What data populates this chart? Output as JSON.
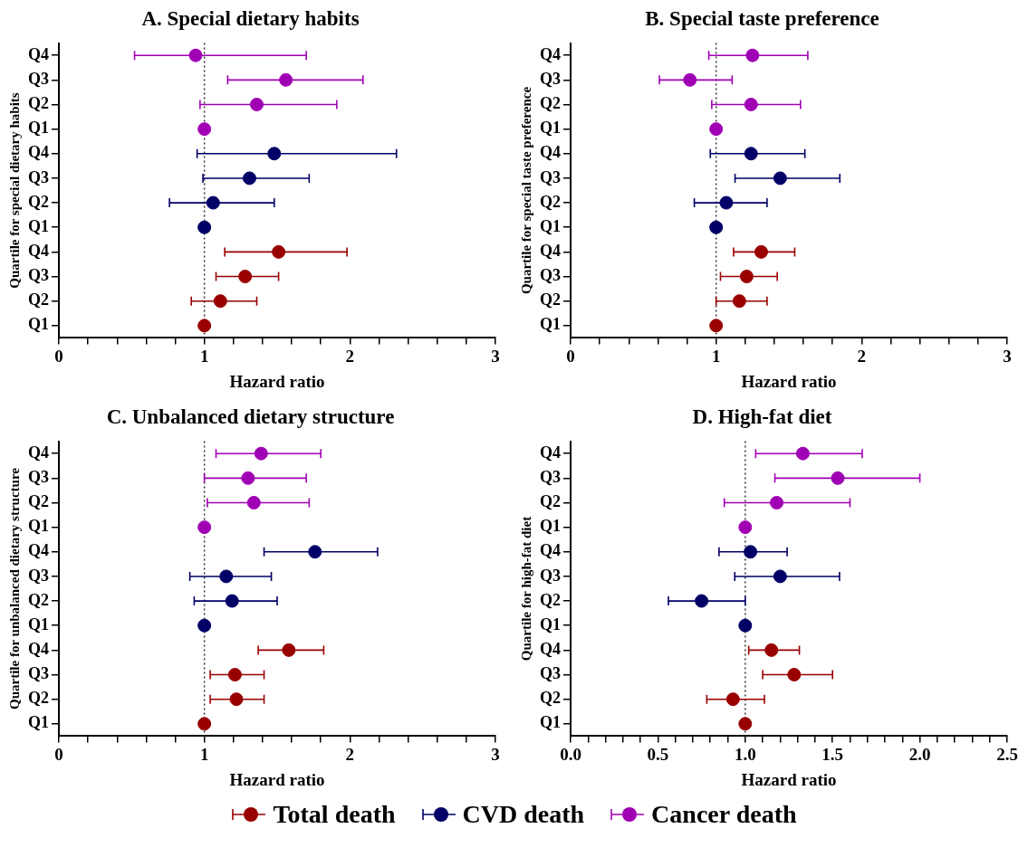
{
  "chart_data": [
    {
      "type": "scatter",
      "orientation": "horizontal",
      "title": "A. Special dietary habits",
      "xlabel": "Hazard ratio",
      "ylabel": "Quartile for special dietary habits",
      "categories": [
        "Q4",
        "Q3",
        "Q2",
        "Q1",
        "Q4",
        "Q3",
        "Q2",
        "Q1",
        "Q4",
        "Q3",
        "Q2",
        "Q1"
      ],
      "xlim": [
        0,
        3
      ],
      "xticks": [
        0,
        {
          "value": 0.2,
          "label": null
        },
        {
          "value": 0.4,
          "label": null
        },
        {
          "value": 0.6,
          "label": null
        },
        {
          "value": 0.8,
          "label": null
        },
        1,
        {
          "value": 1.2,
          "label": null
        },
        {
          "value": 1.4,
          "label": null
        },
        {
          "value": 1.6,
          "label": null
        },
        {
          "value": 1.8,
          "label": null
        },
        2,
        {
          "value": 2.2,
          "label": null
        },
        {
          "value": 2.4,
          "label": null
        },
        {
          "value": 2.6,
          "label": null
        },
        {
          "value": 2.8,
          "label": null
        },
        3
      ],
      "grid": false,
      "marker": "circle",
      "ref_lines": [
        {
          "axis": "x",
          "value": 1,
          "line_style": "dotted",
          "color": "#333333"
        }
      ],
      "series": [
        {
          "color": "#990000",
          "values": [
            null,
            null,
            null,
            null,
            null,
            null,
            null,
            null,
            1.51,
            1.28,
            1.11,
            1
          ],
          "errors": [
            null,
            null,
            null,
            null,
            null,
            null,
            null,
            null,
            [
              1.14,
              1.98
            ],
            [
              1.08,
              1.51
            ],
            [
              0.91,
              1.36
            ],
            null
          ]
        },
        {
          "color": "#000066",
          "values": [
            null,
            null,
            null,
            null,
            1.48,
            1.31,
            1.06,
            1,
            null,
            null,
            null,
            null
          ],
          "errors": [
            null,
            null,
            null,
            null,
            [
              0.95,
              2.32
            ],
            [
              0.99,
              1.72
            ],
            [
              0.76,
              1.48
            ],
            null,
            null,
            null,
            null,
            null
          ]
        },
        {
          "color": "#a000b4",
          "values": [
            0.94,
            1.56,
            1.36,
            1,
            null,
            null,
            null,
            null,
            null,
            null,
            null,
            null
          ],
          "errors": [
            [
              0.52,
              1.7
            ],
            [
              1.16,
              2.09
            ],
            [
              0.97,
              1.91
            ],
            null,
            null,
            null,
            null,
            null,
            null,
            null,
            null,
            null
          ]
        }
      ]
    },
    {
      "type": "scatter",
      "orientation": "horizontal",
      "title": "B. Special taste preference",
      "xlabel": "Hazard ratio",
      "ylabel": "Quartile for special taste preference",
      "categories": [
        "Q4",
        "Q3",
        "Q2",
        "Q1",
        "Q4",
        "Q3",
        "Q2",
        "Q1",
        "Q4",
        "Q3",
        "Q2",
        "Q1"
      ],
      "xlim": [
        0,
        3
      ],
      "xticks": [
        0,
        {
          "value": 0.2,
          "label": null
        },
        {
          "value": 0.4,
          "label": null
        },
        {
          "value": 0.6,
          "label": null
        },
        {
          "value": 0.8,
          "label": null
        },
        1,
        {
          "value": 1.2,
          "label": null
        },
        {
          "value": 1.4,
          "label": null
        },
        {
          "value": 1.6,
          "label": null
        },
        {
          "value": 1.8,
          "label": null
        },
        2,
        {
          "value": 2.2,
          "label": null
        },
        {
          "value": 2.4,
          "label": null
        },
        {
          "value": 2.6,
          "label": null
        },
        {
          "value": 2.8,
          "label": null
        },
        3
      ],
      "grid": false,
      "marker": "circle",
      "ref_lines": [
        {
          "axis": "x",
          "value": 1,
          "line_style": "dotted",
          "color": "#333333"
        }
      ],
      "series": [
        {
          "color": "#990000",
          "values": [
            null,
            null,
            null,
            null,
            null,
            null,
            null,
            null,
            1.31,
            1.21,
            1.16,
            1
          ],
          "errors": [
            null,
            null,
            null,
            null,
            null,
            null,
            null,
            null,
            [
              1.12,
              1.54
            ],
            [
              1.03,
              1.42
            ],
            [
              1.0,
              1.35
            ],
            null
          ]
        },
        {
          "color": "#000066",
          "values": [
            null,
            null,
            null,
            null,
            1.24,
            1.44,
            1.07,
            1,
            null,
            null,
            null,
            null
          ],
          "errors": [
            null,
            null,
            null,
            null,
            [
              0.96,
              1.61
            ],
            [
              1.13,
              1.85
            ],
            [
              0.85,
              1.35
            ],
            null,
            null,
            null,
            null,
            null
          ]
        },
        {
          "color": "#a000b4",
          "values": [
            1.25,
            0.82,
            1.24,
            1,
            null,
            null,
            null,
            null,
            null,
            null,
            null,
            null
          ],
          "errors": [
            [
              0.95,
              1.63
            ],
            [
              0.61,
              1.11
            ],
            [
              0.97,
              1.58
            ],
            null,
            null,
            null,
            null,
            null,
            null,
            null,
            null,
            null
          ]
        }
      ]
    },
    {
      "type": "scatter",
      "orientation": "horizontal",
      "title": "C. Unbalanced dietary structure",
      "xlabel": "Hazard ratio",
      "ylabel": "Quartile for unbalanced dietary structure",
      "categories": [
        "Q4",
        "Q3",
        "Q2",
        "Q1",
        "Q4",
        "Q3",
        "Q2",
        "Q1",
        "Q4",
        "Q3",
        "Q2",
        "Q1"
      ],
      "xlim": [
        0,
        3
      ],
      "xticks": [
        0,
        {
          "value": 0.2,
          "label": null
        },
        {
          "value": 0.4,
          "label": null
        },
        {
          "value": 0.6,
          "label": null
        },
        {
          "value": 0.8,
          "label": null
        },
        1,
        {
          "value": 1.2,
          "label": null
        },
        {
          "value": 1.4,
          "label": null
        },
        {
          "value": 1.6,
          "label": null
        },
        {
          "value": 1.8,
          "label": null
        },
        2,
        {
          "value": 2.2,
          "label": null
        },
        {
          "value": 2.4,
          "label": null
        },
        {
          "value": 2.6,
          "label": null
        },
        {
          "value": 2.8,
          "label": null
        },
        3
      ],
      "grid": false,
      "marker": "circle",
      "ref_lines": [
        {
          "axis": "x",
          "value": 1,
          "line_style": "dotted",
          "color": "#333333"
        }
      ],
      "series": [
        {
          "color": "#990000",
          "values": [
            null,
            null,
            null,
            null,
            null,
            null,
            null,
            null,
            1.58,
            1.21,
            1.22,
            1
          ],
          "errors": [
            null,
            null,
            null,
            null,
            null,
            null,
            null,
            null,
            [
              1.37,
              1.82
            ],
            [
              1.04,
              1.41
            ],
            [
              1.04,
              1.41
            ],
            null
          ]
        },
        {
          "color": "#000066",
          "values": [
            null,
            null,
            null,
            null,
            1.76,
            1.15,
            1.19,
            1,
            null,
            null,
            null,
            null
          ],
          "errors": [
            null,
            null,
            null,
            null,
            [
              1.41,
              2.19
            ],
            [
              0.9,
              1.46
            ],
            [
              0.93,
              1.5
            ],
            null,
            null,
            null,
            null,
            null
          ]
        },
        {
          "color": "#a000b4",
          "values": [
            1.39,
            1.3,
            1.34,
            1,
            null,
            null,
            null,
            null,
            null,
            null,
            null,
            null
          ],
          "errors": [
            [
              1.08,
              1.8
            ],
            [
              1.0,
              1.7
            ],
            [
              1.02,
              1.72
            ],
            null,
            null,
            null,
            null,
            null,
            null,
            null,
            null,
            null
          ]
        }
      ]
    },
    {
      "type": "scatter",
      "orientation": "horizontal",
      "title": "D. High-fat diet",
      "xlabel": "Hazard ratio",
      "ylabel": "Quartile for high-fat diet",
      "categories": [
        "Q4",
        "Q3",
        "Q2",
        "Q1",
        "Q4",
        "Q3",
        "Q2",
        "Q1",
        "Q4",
        "Q3",
        "Q2",
        "Q1"
      ],
      "xlim": [
        0,
        2.5
      ],
      "xticks": [
        {
          "value": 0,
          "label": "0.0"
        },
        {
          "value": 0.1,
          "label": null
        },
        {
          "value": 0.2,
          "label": null
        },
        {
          "value": 0.3,
          "label": null
        },
        {
          "value": 0.4,
          "label": null
        },
        0.5,
        {
          "value": 0.6,
          "label": null
        },
        {
          "value": 0.7,
          "label": null
        },
        {
          "value": 0.8,
          "label": null
        },
        {
          "value": 0.9,
          "label": null
        },
        {
          "value": 1,
          "label": "1.0"
        },
        {
          "value": 1.1,
          "label": null
        },
        {
          "value": 1.2,
          "label": null
        },
        {
          "value": 1.3,
          "label": null
        },
        {
          "value": 1.4,
          "label": null
        },
        1.5,
        {
          "value": 1.6,
          "label": null
        },
        {
          "value": 1.7,
          "label": null
        },
        {
          "value": 1.8,
          "label": null
        },
        {
          "value": 1.9,
          "label": null
        },
        {
          "value": 2,
          "label": "2.0"
        },
        {
          "value": 2.1,
          "label": null
        },
        {
          "value": 2.2,
          "label": null
        },
        {
          "value": 2.3,
          "label": null
        },
        {
          "value": 2.4,
          "label": null
        },
        2.5
      ],
      "grid": false,
      "marker": "circle",
      "legend": "bottom",
      "ref_lines": [
        {
          "axis": "x",
          "value": 1,
          "line_style": "dotted",
          "color": "#333333"
        }
      ],
      "series": [
        {
          "name": "Total death",
          "color": "#990000",
          "values": [
            null,
            null,
            null,
            null,
            null,
            null,
            null,
            null,
            1.15,
            1.28,
            0.93,
            1
          ],
          "errors": [
            null,
            null,
            null,
            null,
            null,
            null,
            null,
            null,
            [
              1.02,
              1.31
            ],
            [
              1.1,
              1.5
            ],
            [
              0.78,
              1.11
            ],
            null
          ]
        },
        {
          "name": "CVD death",
          "color": "#000066",
          "values": [
            null,
            null,
            null,
            null,
            1.03,
            1.2,
            0.75,
            1,
            null,
            null,
            null,
            null
          ],
          "errors": [
            null,
            null,
            null,
            null,
            [
              0.85,
              1.24
            ],
            [
              0.94,
              1.54
            ],
            [
              0.56,
              1.0
            ],
            null,
            null,
            null,
            null,
            null
          ]
        },
        {
          "name": "Cancer death",
          "color": "#a000b4",
          "values": [
            1.33,
            1.53,
            1.18,
            1,
            null,
            null,
            null,
            null,
            null,
            null,
            null,
            null
          ],
          "errors": [
            [
              1.06,
              1.67
            ],
            [
              1.17,
              2.0
            ],
            [
              0.88,
              1.6
            ],
            null,
            null,
            null,
            null,
            null,
            null,
            null,
            null,
            null
          ]
        }
      ]
    }
  ]
}
